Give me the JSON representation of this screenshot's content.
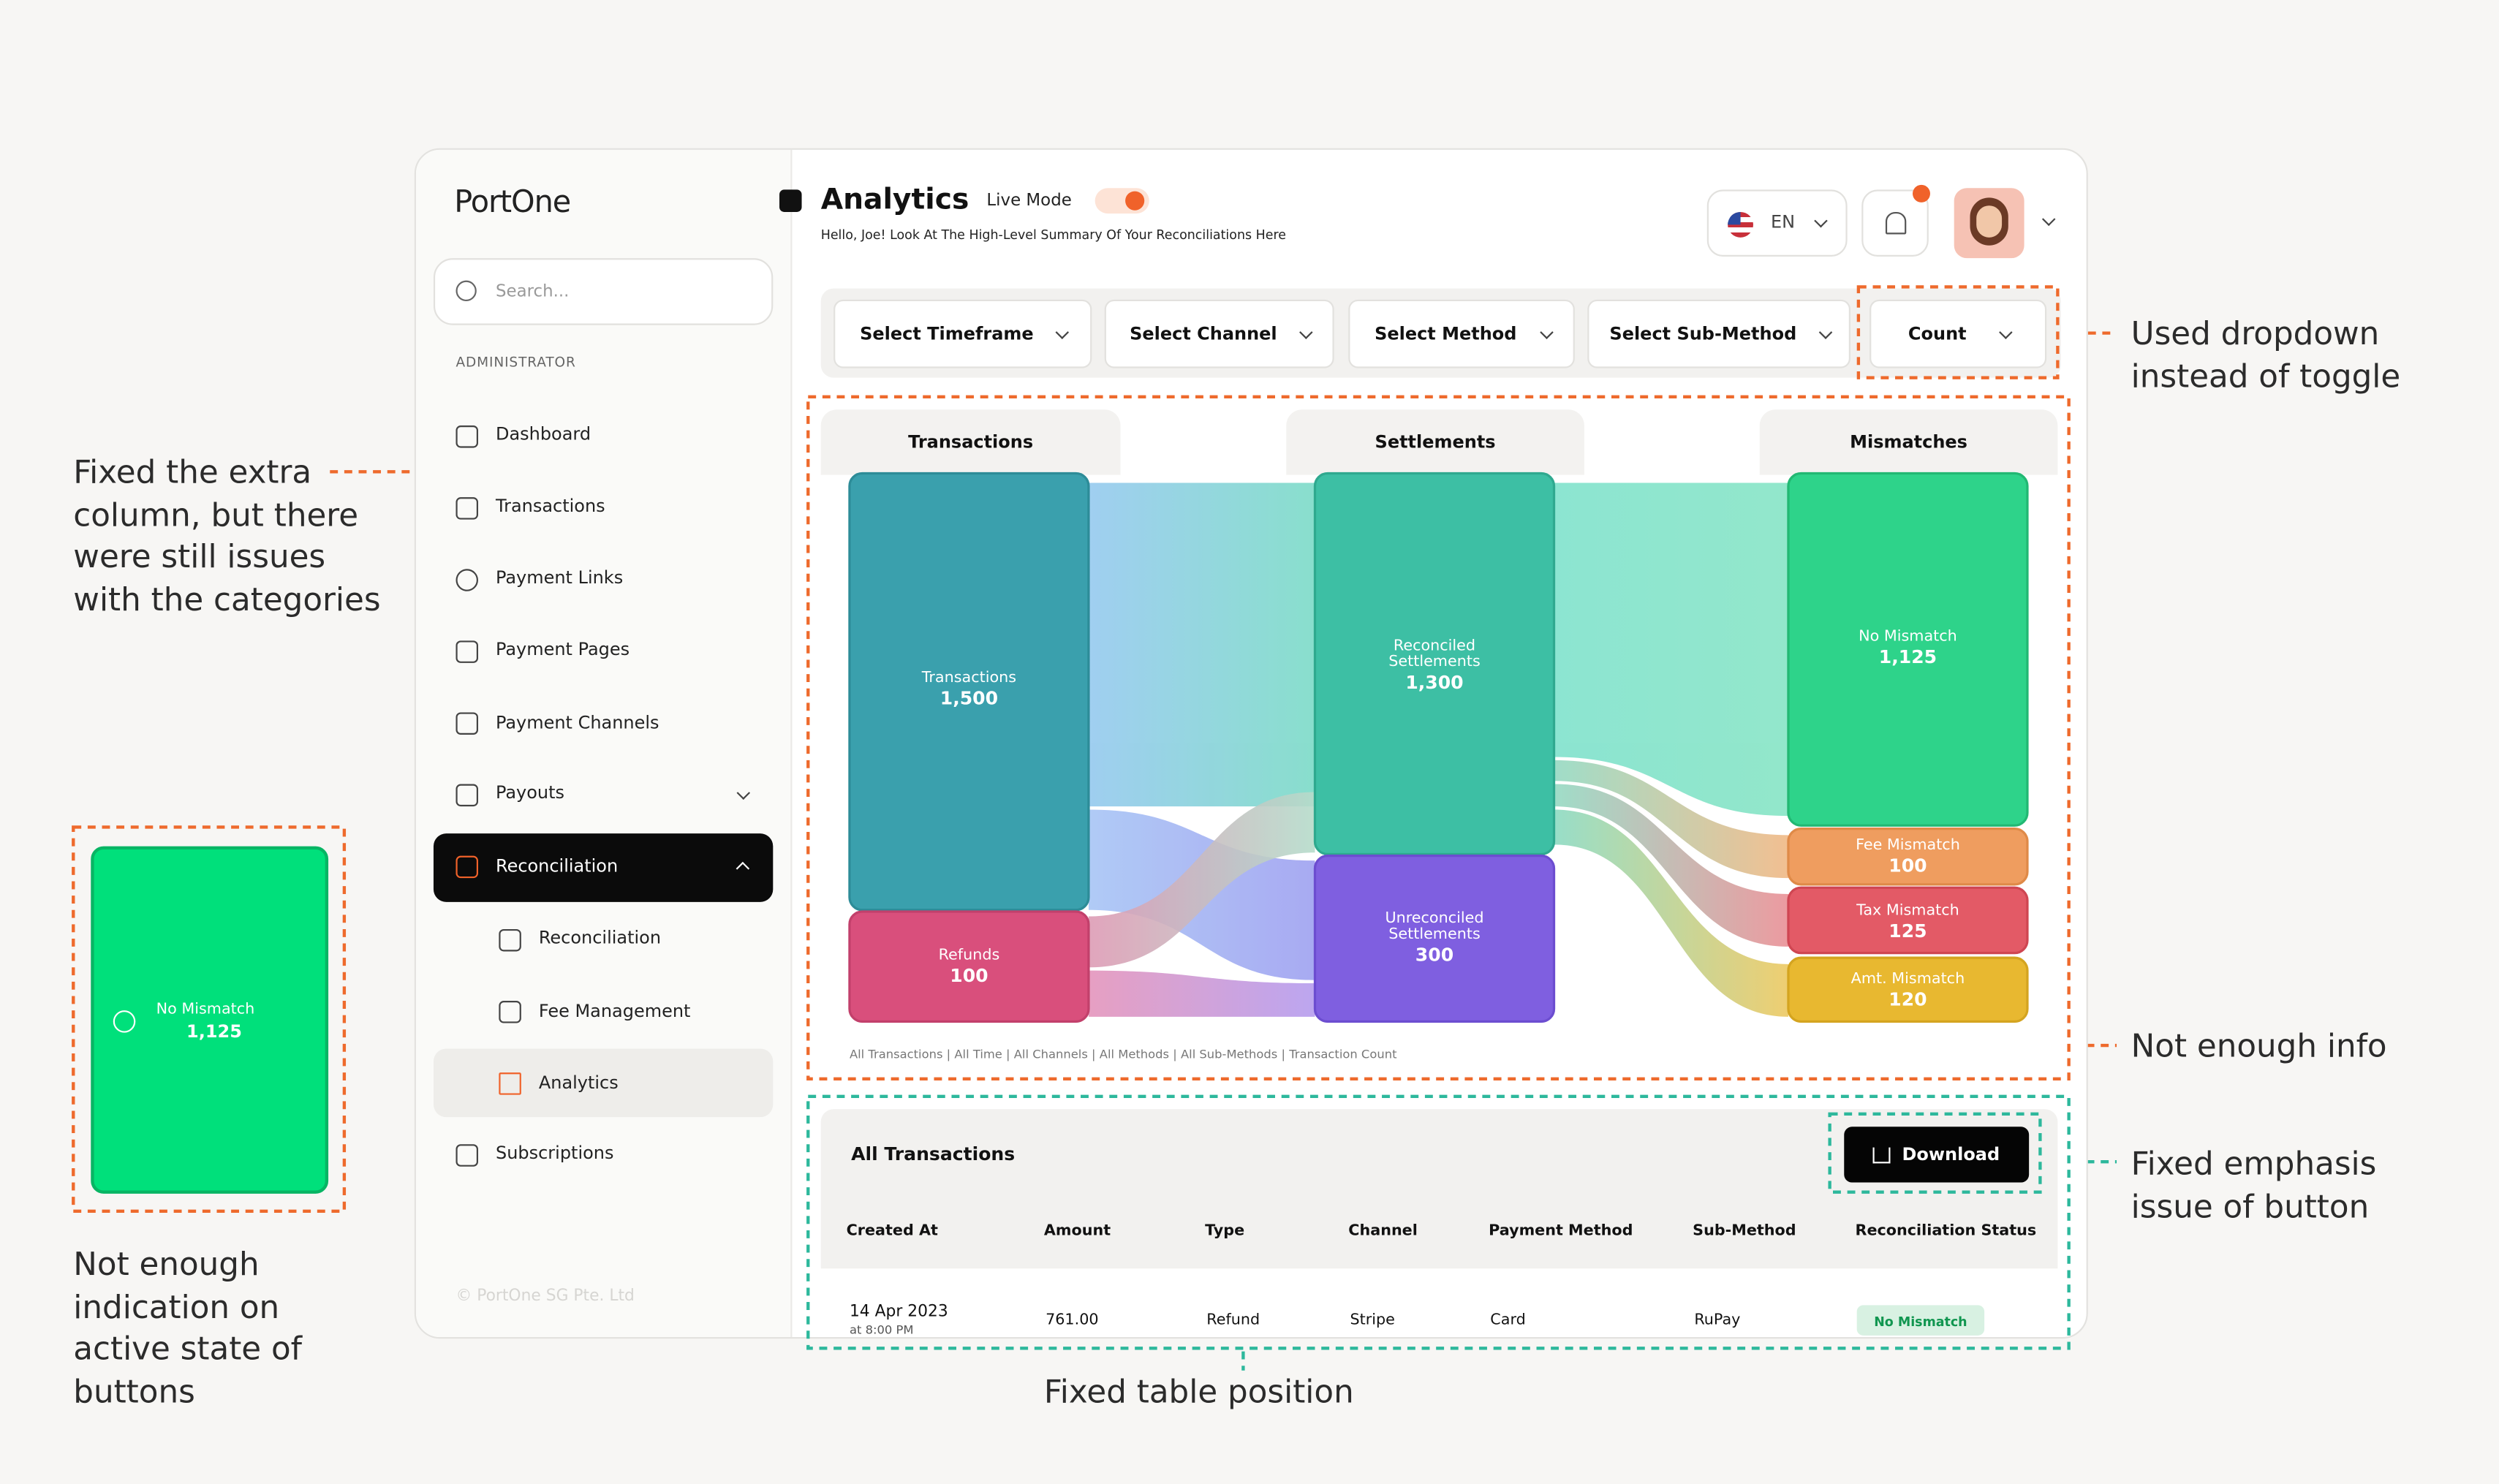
{
  "sidebar": {
    "logo": "PortOne",
    "search_placeholder": "Search...",
    "section": "ADMINISTRATOR",
    "items": [
      "Dashboard",
      "Transactions",
      "Payment Links",
      "Payment Pages",
      "Payment Channels",
      "Payouts",
      "Reconciliation"
    ],
    "subitems": [
      "Reconciliation",
      "Fee Management",
      "Analytics"
    ],
    "last_item": "Subscriptions",
    "footer": "© PortOne SG Pte. Ltd"
  },
  "header": {
    "title": "Analytics",
    "mode": "Live Mode",
    "subtitle": "Hello, Joe! Look At The  High-Level Summary Of Your Reconciliations Here",
    "language": "EN"
  },
  "filters": [
    "Select Timeframe",
    "Select Channel",
    "Select Method",
    "Select Sub-Method",
    "Count"
  ],
  "sankey": {
    "columns": [
      "Transactions",
      "Settlements",
      "Mismatches"
    ],
    "nodes": [
      {
        "label": "Transactions",
        "value": "1,500"
      },
      {
        "label": "Refunds",
        "value": "100"
      },
      {
        "label": "Reconciled Settlements",
        "value": "1,300"
      },
      {
        "label": "Unreconciled Settlements",
        "value": "300"
      },
      {
        "label": "No Mismatch",
        "value": "1,125"
      },
      {
        "label": "Fee Mismatch",
        "value": "100"
      },
      {
        "label": "Tax Mismatch",
        "value": "125"
      },
      {
        "label": "Amt. Mismatch",
        "value": "120"
      }
    ],
    "footnote": "All Transactions | All Time | All Channels | All Methods | All Sub-Methods | Transaction Count"
  },
  "table": {
    "title": "All Transactions",
    "button": "Download",
    "columns": [
      "Created At",
      "Amount",
      "Type",
      "Channel",
      "Payment Method",
      "Sub-Method",
      "Reconciliation Status"
    ],
    "rows": [
      [
        "14 Apr 2023",
        "at 8:00 PM",
        "761.00",
        "Refund",
        "Stripe",
        "Card",
        "RuPay",
        "No Mismatch"
      ]
    ]
  },
  "annotations": [
    "Fixed the extra column, but there were still issues with the categories",
    "Used dropdown instead of toggle",
    "Not enough info",
    "Fixed emphasis issue of button",
    "Fixed table position",
    "Not enough indication on active state of buttons"
  ],
  "callout_card": {
    "label": "No Mismatch",
    "value": "1,125"
  }
}
